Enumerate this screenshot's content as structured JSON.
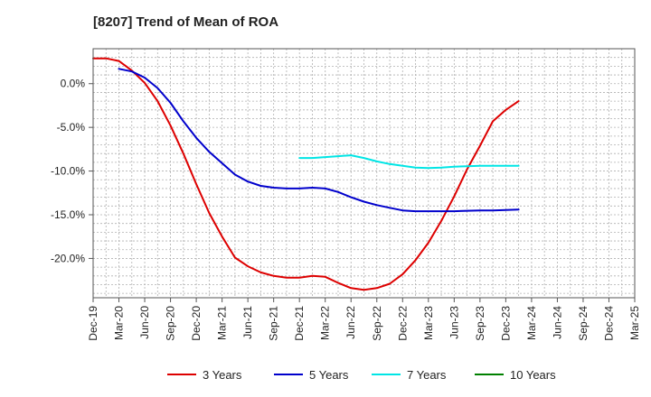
{
  "chart_data": {
    "type": "line",
    "title": "[8207]  Trend of Mean of ROA",
    "xlabel": "",
    "ylabel": "",
    "ylim": [
      -24.5,
      4.0
    ],
    "y_ticks": [
      0,
      -5,
      -10,
      -15,
      -20
    ],
    "y_tick_labels": [
      "0.0%",
      "-5.0%",
      "-10.0%",
      "-15.0%",
      "-20.0%"
    ],
    "x_tick_labels": [
      "Dec-19",
      "Mar-20",
      "Jun-20",
      "Sep-20",
      "Dec-20",
      "Mar-21",
      "Jun-21",
      "Sep-21",
      "Dec-21",
      "Mar-22",
      "Jun-22",
      "Sep-22",
      "Dec-22",
      "Mar-23",
      "Jun-23",
      "Sep-23",
      "Dec-23",
      "Mar-24",
      "Jun-24",
      "Sep-24",
      "Dec-24",
      "Mar-25"
    ],
    "grid": true,
    "legend_position": "bottom",
    "series": [
      {
        "name": "3 Years",
        "color": "#dd0000",
        "points": [
          [
            0,
            2.9
          ],
          [
            0.5,
            2.9
          ],
          [
            1,
            2.6
          ],
          [
            1.5,
            1.5
          ],
          [
            2,
            0.1
          ],
          [
            2.5,
            -2.0
          ],
          [
            3,
            -4.8
          ],
          [
            3.5,
            -8.0
          ],
          [
            4,
            -11.5
          ],
          [
            4.5,
            -14.8
          ],
          [
            5,
            -17.5
          ],
          [
            5.5,
            -19.9
          ],
          [
            6,
            -20.9
          ],
          [
            6.5,
            -21.6
          ],
          [
            7,
            -22.0
          ],
          [
            7.5,
            -22.2
          ],
          [
            8,
            -22.2
          ],
          [
            8.5,
            -22.0
          ],
          [
            9,
            -22.1
          ],
          [
            9.5,
            -22.8
          ],
          [
            10,
            -23.4
          ],
          [
            10.5,
            -23.6
          ],
          [
            11,
            -23.4
          ],
          [
            11.5,
            -22.9
          ],
          [
            12,
            -21.8
          ],
          [
            12.5,
            -20.2
          ],
          [
            13,
            -18.2
          ],
          [
            13.5,
            -15.7
          ],
          [
            14,
            -12.9
          ],
          [
            14.5,
            -9.8
          ],
          [
            15,
            -7.1
          ],
          [
            15.5,
            -4.3
          ],
          [
            16,
            -3.0
          ],
          [
            16.5,
            -2.0
          ]
        ]
      },
      {
        "name": "5 Years",
        "color": "#0000cc",
        "points": [
          [
            1,
            1.7
          ],
          [
            1.5,
            1.4
          ],
          [
            2,
            0.7
          ],
          [
            2.5,
            -0.5
          ],
          [
            3,
            -2.2
          ],
          [
            3.5,
            -4.3
          ],
          [
            4,
            -6.2
          ],
          [
            4.5,
            -7.8
          ],
          [
            5,
            -9.1
          ],
          [
            5.5,
            -10.4
          ],
          [
            6,
            -11.2
          ],
          [
            6.5,
            -11.7
          ],
          [
            7,
            -11.9
          ],
          [
            7.5,
            -12.0
          ],
          [
            8,
            -12.0
          ],
          [
            8.5,
            -11.9
          ],
          [
            9,
            -12.0
          ],
          [
            9.5,
            -12.4
          ],
          [
            10,
            -13.0
          ],
          [
            10.5,
            -13.5
          ],
          [
            11,
            -13.9
          ],
          [
            11.5,
            -14.2
          ],
          [
            12,
            -14.5
          ],
          [
            12.5,
            -14.6
          ],
          [
            13,
            -14.6
          ],
          [
            13.5,
            -14.6
          ],
          [
            14,
            -14.6
          ],
          [
            14.5,
            -14.55
          ],
          [
            15,
            -14.5
          ],
          [
            15.5,
            -14.5
          ],
          [
            16,
            -14.45
          ],
          [
            16.5,
            -14.4
          ]
        ]
      },
      {
        "name": "7 Years",
        "color": "#00e5e5",
        "points": [
          [
            8,
            -8.5
          ],
          [
            8.5,
            -8.5
          ],
          [
            9,
            -8.4
          ],
          [
            9.5,
            -8.3
          ],
          [
            10,
            -8.2
          ],
          [
            10.5,
            -8.5
          ],
          [
            11,
            -8.9
          ],
          [
            11.5,
            -9.2
          ],
          [
            12,
            -9.4
          ],
          [
            12.5,
            -9.6
          ],
          [
            13,
            -9.65
          ],
          [
            13.5,
            -9.6
          ],
          [
            14,
            -9.5
          ],
          [
            14.5,
            -9.45
          ],
          [
            15,
            -9.4
          ],
          [
            15.5,
            -9.4
          ],
          [
            16,
            -9.4
          ],
          [
            16.5,
            -9.4
          ]
        ]
      },
      {
        "name": "10 Years",
        "color": "#008000",
        "points": []
      }
    ]
  }
}
